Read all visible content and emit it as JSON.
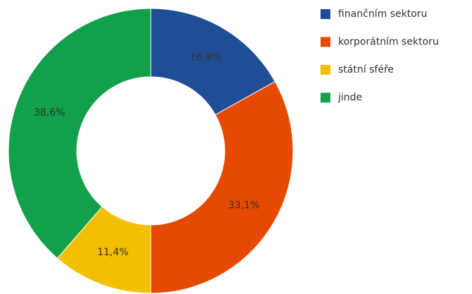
{
  "chart_data": {
    "type": "pie",
    "categories": [
      "finančním sektoru",
      "korporátním sektoru",
      "státní sféře",
      "jinde"
    ],
    "values": [
      16.9,
      33.1,
      11.4,
      38.6
    ],
    "value_labels": [
      "16,9%",
      "33,1%",
      "11,4%",
      "38,6%"
    ],
    "colors": [
      "#1f4e96",
      "#e64a00",
      "#f2c000",
      "#12a04a"
    ],
    "legend": "right"
  }
}
